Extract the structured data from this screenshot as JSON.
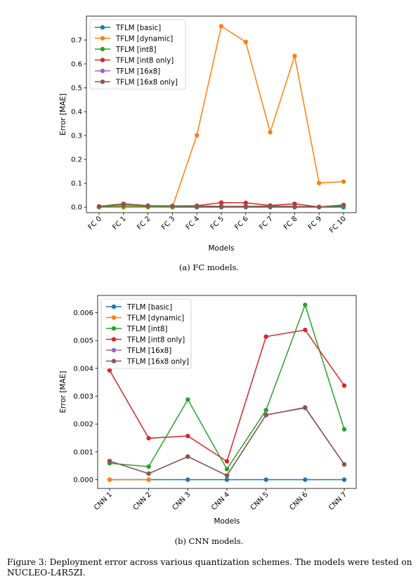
{
  "charts": [
    {
      "type": "line",
      "xlabel": "Models",
      "ylabel": "Error [MAE]",
      "categories": [
        "FC 0",
        "FC 1",
        "FC 2",
        "FC 3",
        "FC 4",
        "FC 5",
        "FC 6",
        "FC 7",
        "FC 8",
        "FC 9",
        "FC 10"
      ],
      "ylim": [
        -0.023,
        0.8
      ],
      "yticks": [
        0.0,
        0.1,
        0.2,
        0.3,
        0.4,
        0.5,
        0.6,
        0.7
      ],
      "ytick_labels": [
        "0.0",
        "0.1",
        "0.2",
        "0.3",
        "0.4",
        "0.5",
        "0.6",
        "0.7"
      ],
      "grid": false,
      "legend_position": "top-left",
      "series": [
        {
          "name": "TFLM [basic]",
          "color": "#1f77b4",
          "values": [
            0,
            0,
            0,
            0,
            0,
            0,
            0,
            0,
            0,
            0,
            0
          ]
        },
        {
          "name": "TFLM [dynamic]",
          "color": "#ff7f0e",
          "values": [
            0,
            0,
            0,
            0,
            0.301,
            0.758,
            0.692,
            0.314,
            0.633,
            0.101,
            0.107
          ]
        },
        {
          "name": "TFLM [int8]",
          "color": "#2ca02c",
          "values": [
            0.002,
            0.005,
            0.003,
            0.002,
            0.003,
            0.003,
            0.003,
            0.003,
            0.003,
            0.001,
            0.004
          ]
        },
        {
          "name": "TFLM [int8 only]",
          "color": "#d62728",
          "values": [
            0.003,
            0.012,
            0.006,
            0.005,
            0.006,
            0.019,
            0.018,
            0.007,
            0.014,
            0.001,
            0.009
          ]
        },
        {
          "name": "TFLM [16x8]",
          "color": "#9467bd",
          "values": [
            0.003,
            0.014,
            0.006,
            0.005,
            0.004,
            0.003,
            0.003,
            0.004,
            0.003,
            0.001,
            0.008
          ]
        },
        {
          "name": "TFLM [16x8 only]",
          "color": "#8c564b",
          "values": [
            0.003,
            0.014,
            0.006,
            0.005,
            0.004,
            0.003,
            0.003,
            0.004,
            0.003,
            0.001,
            0.009
          ]
        }
      ]
    },
    {
      "type": "line",
      "xlabel": "Models",
      "ylabel": "Error [MAE]",
      "categories": [
        "CNN 1",
        "CNN 2",
        "CNN 3",
        "CNN 4",
        "CNN 5",
        "CNN 6",
        "CNN 7"
      ],
      "ylim": [
        -0.000315,
        0.00662
      ],
      "yticks": [
        0,
        0.001,
        0.002,
        0.003,
        0.004,
        0.005,
        0.006
      ],
      "ytick_labels": [
        "0.000",
        "0.001",
        "0.002",
        "0.003",
        "0.004",
        "0.005",
        "0.006"
      ],
      "grid": false,
      "legend_position": "top-left",
      "series": [
        {
          "name": "TFLM [basic]",
          "color": "#1f77b4",
          "values": [
            0,
            0,
            0,
            0,
            0,
            0,
            0
          ]
        },
        {
          "name": "TFLM [dynamic]",
          "color": "#ff7f0e",
          "values": [
            0,
            0,
            null,
            null,
            null,
            null,
            null
          ]
        },
        {
          "name": "TFLM [int8]",
          "color": "#2ca02c",
          "values": [
            0.00059,
            0.00047,
            0.00288,
            0.00038,
            0.0025,
            0.00628,
            0.00181
          ]
        },
        {
          "name": "TFLM [int8 only]",
          "color": "#d62728",
          "values": [
            0.00393,
            0.00149,
            0.00157,
            0.00066,
            0.00514,
            0.00538,
            0.00338
          ]
        },
        {
          "name": "TFLM [16x8]",
          "color": "#9467bd",
          "values": [
            0.00067,
            0.00022,
            0.00083,
            0.00015,
            0.00232,
            0.0026,
            0.00055
          ]
        },
        {
          "name": "TFLM [16x8 only]",
          "color": "#8c564b",
          "values": [
            0.00067,
            0.00022,
            0.00083,
            0.00015,
            0.00233,
            0.00258,
            0.00055
          ]
        }
      ]
    }
  ],
  "captions": {
    "fc": "(a) FC models.",
    "cnn": "(b) CNN models.",
    "figure": "Figure 3: Deployment error across various quantization schemes. The models were tested on NUCLEO-L4R5ZI."
  }
}
